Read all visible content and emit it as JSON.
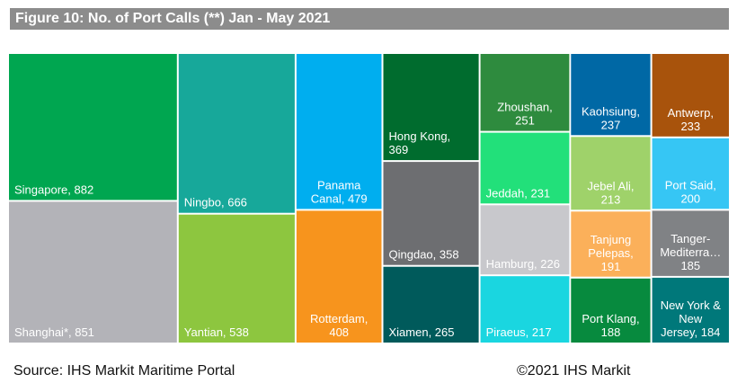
{
  "title": "Figure 10: No. of Port Calls (**) Jan - May 2021",
  "source": "Source: IHS Markit Maritime Portal",
  "copyright": "©2021 IHS Markit",
  "chart_data": {
    "type": "treemap",
    "title": "Figure 10: No. of Port Calls (**) Jan - May 2021",
    "items": [
      {
        "label": "Singapore",
        "value": 882,
        "lines": [
          "Singapore, 882"
        ],
        "color": "#00a650"
      },
      {
        "label": "Shanghai*",
        "value": 851,
        "lines": [
          "Shanghai*, 851"
        ],
        "color": "#b3b3b8"
      },
      {
        "label": "Ningbo",
        "value": 666,
        "lines": [
          "Ningbo, 666"
        ],
        "color": "#17a89a"
      },
      {
        "label": "Yantian",
        "value": 538,
        "lines": [
          "Yantian, 538"
        ],
        "color": "#8dc63f"
      },
      {
        "label": "Panama Canal",
        "value": 479,
        "lines": [
          "Panama",
          "Canal, 479"
        ],
        "color": "#00aeef"
      },
      {
        "label": "Rotterdam",
        "value": 408,
        "lines": [
          "Rotterdam,",
          "408"
        ],
        "color": "#f7941d"
      },
      {
        "label": "Hong Kong",
        "value": 369,
        "lines": [
          "Hong Kong,",
          "369"
        ],
        "color": "#006c2e"
      },
      {
        "label": "Qingdao",
        "value": 358,
        "lines": [
          "Qingdao, 358"
        ],
        "color": "#6d6e71"
      },
      {
        "label": "Xiamen",
        "value": 265,
        "lines": [
          "Xiamen, 265"
        ],
        "color": "#005a5b"
      },
      {
        "label": "Zhoushan",
        "value": 251,
        "lines": [
          "Zhoushan,",
          "251"
        ],
        "color": "#2e8b3e"
      },
      {
        "label": "Jeddah",
        "value": 231,
        "lines": [
          "Jeddah, 231"
        ],
        "color": "#22e07a"
      },
      {
        "label": "Hamburg",
        "value": 226,
        "lines": [
          "Hamburg, 226"
        ],
        "color": "#c8c8cc"
      },
      {
        "label": "Piraeus",
        "value": 217,
        "lines": [
          "Piraeus, 217"
        ],
        "color": "#1ad6e0"
      },
      {
        "label": "Kaohsiung",
        "value": 237,
        "lines": [
          "Kaohsiung,",
          "237"
        ],
        "color": "#0068a5"
      },
      {
        "label": "Jebel Ali",
        "value": 213,
        "lines": [
          "Jebel Ali,",
          "213"
        ],
        "color": "#9fd26a"
      },
      {
        "label": "Tanjung Pelepas",
        "value": 191,
        "lines": [
          "Tanjung",
          "Pelepas,",
          "191"
        ],
        "color": "#fbb05a"
      },
      {
        "label": "Port Klang",
        "value": 188,
        "lines": [
          "Port Klang,",
          "188"
        ],
        "color": "#078a3e"
      },
      {
        "label": "Antwerp",
        "value": 233,
        "lines": [
          "Antwerp,",
          "233"
        ],
        "color": "#a8530c"
      },
      {
        "label": "Port Said",
        "value": 200,
        "lines": [
          "Port Said,",
          "200"
        ],
        "color": "#36c6f4"
      },
      {
        "label": "Tanger-Mediterranean",
        "value": 185,
        "lines": [
          "Tanger-",
          "Mediterra…",
          "185"
        ],
        "color": "#808285"
      },
      {
        "label": "New York & New Jersey",
        "value": 184,
        "lines": [
          "New York &",
          "New",
          "Jersey, 184"
        ],
        "color": "#00787a"
      }
    ]
  }
}
